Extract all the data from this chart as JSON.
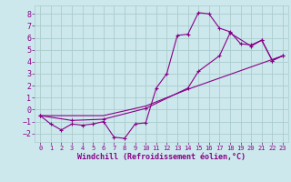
{
  "background_color": "#cce8ec",
  "grid_color": "#aacccc",
  "line_color": "#880088",
  "xlabel": "Windchill (Refroidissement éolien,°C)",
  "xlim": [
    -0.5,
    23.5
  ],
  "ylim": [
    -2.7,
    8.7
  ],
  "xticks": [
    0,
    1,
    2,
    3,
    4,
    5,
    6,
    7,
    8,
    9,
    10,
    11,
    12,
    13,
    14,
    15,
    16,
    17,
    18,
    19,
    20,
    21,
    22,
    23
  ],
  "yticks": [
    -2,
    -1,
    0,
    1,
    2,
    3,
    4,
    5,
    6,
    7,
    8
  ],
  "series1_x": [
    0,
    1,
    2,
    3,
    4,
    5,
    6,
    7,
    8,
    9,
    10,
    11,
    12,
    13,
    14,
    15,
    16,
    17,
    18,
    19,
    20,
    21,
    22,
    23
  ],
  "series1_y": [
    -0.5,
    -1.2,
    -1.7,
    -1.2,
    -1.3,
    -1.2,
    -1.0,
    -2.3,
    -2.4,
    -1.2,
    -1.1,
    1.8,
    3.0,
    6.2,
    6.3,
    8.1,
    8.0,
    6.8,
    6.5,
    5.5,
    5.4,
    5.8,
    4.1,
    4.5
  ],
  "series2_x": [
    0,
    3,
    6,
    10,
    14,
    15,
    17,
    18,
    20,
    21,
    22,
    23
  ],
  "series2_y": [
    -0.5,
    -0.9,
    -0.8,
    0.1,
    1.8,
    3.2,
    4.5,
    6.4,
    5.3,
    5.8,
    4.1,
    4.5
  ],
  "series3_x": [
    0,
    6,
    10,
    14,
    23
  ],
  "series3_y": [
    -0.5,
    -0.5,
    0.3,
    1.7,
    4.5
  ]
}
